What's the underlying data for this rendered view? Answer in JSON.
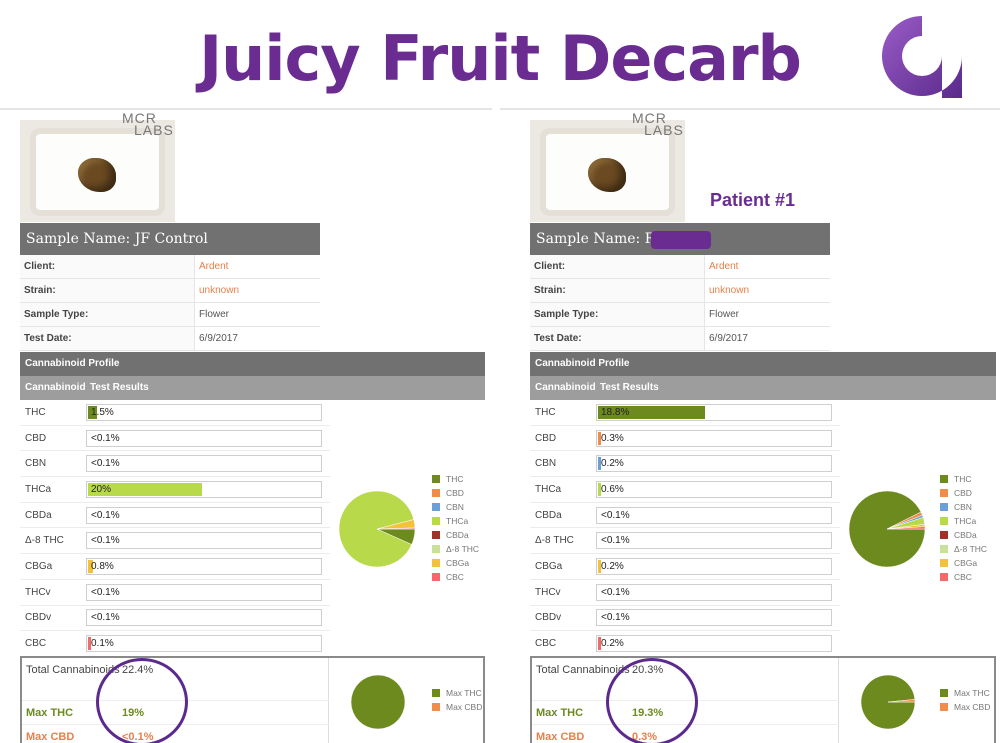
{
  "title": "Juicy Fruit Decarb",
  "legend_labels": [
    "THC",
    "CBD",
    "CBN",
    "THCa",
    "CBDa",
    "Δ-8 THC",
    "CBGa",
    "CBC"
  ],
  "legend_colors": [
    "#6c8a1e",
    "#f28c4a",
    "#6a9fd8",
    "#b8d94a",
    "#a3312a",
    "#c8e09a",
    "#f2c33a",
    "#f26a6a"
  ],
  "total_legend": [
    "Max THC",
    "Max CBD"
  ],
  "panels": [
    {
      "logo": "MCR LABS",
      "patient_label": "",
      "sample_name": "Sample Name: JF Control",
      "info": [
        {
          "k": "Client:",
          "v": "Ardent"
        },
        {
          "k": "Strain:",
          "v": "unknown"
        },
        {
          "k": "Sample Type:",
          "v": "Flower"
        },
        {
          "k": "Test Date:",
          "v": "6/9/2017"
        }
      ],
      "profile_header": "Cannabinoid Profile",
      "col_cannabinoid": "Cannabinoid",
      "col_results": "Test Results",
      "cannabinoids": [
        {
          "name": "THC",
          "value": "1.5%"
        },
        {
          "name": "CBD",
          "value": "<0.1%"
        },
        {
          "name": "CBN",
          "value": "<0.1%"
        },
        {
          "name": "THCa",
          "value": "20%"
        },
        {
          "name": "CBDa",
          "value": "<0.1%"
        },
        {
          "name": "Δ-8 THC",
          "value": "<0.1%"
        },
        {
          "name": "CBGa",
          "value": "0.8%"
        },
        {
          "name": "THCv",
          "value": "<0.1%"
        },
        {
          "name": "CBDv",
          "value": "<0.1%"
        },
        {
          "name": "CBC",
          "value": "0.1%"
        }
      ],
      "total_label": "Total Cannabinoids",
      "total_value": "22.4%",
      "max_thc_label": "Max THC",
      "max_thc_value": "19%",
      "max_cbd_label": "Max CBD",
      "max_cbd_value": "<0.1%"
    },
    {
      "logo": "MCR LABS",
      "patient_label": "Patient #1",
      "sample_name": "Sample Name: Ra h",
      "info": [
        {
          "k": "Client:",
          "v": "Ardent"
        },
        {
          "k": "Strain:",
          "v": "unknown"
        },
        {
          "k": "Sample Type:",
          "v": "Flower"
        },
        {
          "k": "Test Date:",
          "v": "6/9/2017"
        }
      ],
      "profile_header": "Cannabinoid Profile",
      "col_cannabinoid": "Cannabinoid",
      "col_results": "Test Results",
      "cannabinoids": [
        {
          "name": "THC",
          "value": "18.8%"
        },
        {
          "name": "CBD",
          "value": "0.3%"
        },
        {
          "name": "CBN",
          "value": "0.2%"
        },
        {
          "name": "THCa",
          "value": "0.6%"
        },
        {
          "name": "CBDa",
          "value": "<0.1%"
        },
        {
          "name": "Δ-8 THC",
          "value": "<0.1%"
        },
        {
          "name": "CBGa",
          "value": "0.2%"
        },
        {
          "name": "THCv",
          "value": "<0.1%"
        },
        {
          "name": "CBDv",
          "value": "<0.1%"
        },
        {
          "name": "CBC",
          "value": "0.2%"
        }
      ],
      "total_label": "Total Cannabinoids",
      "total_value": "20.3%",
      "max_thc_label": "Max THC",
      "max_thc_value": "19.3%",
      "max_cbd_label": "Max CBD",
      "max_cbd_value": "0.3%"
    }
  ],
  "chart_data": [
    {
      "type": "bar",
      "categories": [
        "THC",
        "CBD",
        "CBN",
        "THCa",
        "CBDa",
        "Δ-8 THC",
        "CBGa",
        "THCv",
        "CBDv",
        "CBC"
      ],
      "values": [
        1.5,
        0,
        0,
        20,
        0,
        0,
        0.8,
        0,
        0,
        0.1
      ]
    },
    {
      "type": "pie",
      "categories": [
        "THC",
        "CBD",
        "CBN",
        "THCa",
        "CBDa",
        "Δ-8 THC",
        "CBGa",
        "CBC"
      ],
      "values": [
        1.5,
        0,
        0,
        20,
        0,
        0,
        0.8,
        0.1
      ]
    },
    {
      "type": "pie",
      "categories": [
        "Max THC",
        "Max CBD"
      ],
      "values": [
        19,
        0
      ]
    },
    {
      "type": "bar",
      "categories": [
        "THC",
        "CBD",
        "CBN",
        "THCa",
        "CBDa",
        "Δ-8 THC",
        "CBGa",
        "THCv",
        "CBDv",
        "CBC"
      ],
      "values": [
        18.8,
        0.3,
        0.2,
        0.6,
        0,
        0,
        0.2,
        0,
        0,
        0.2
      ]
    },
    {
      "type": "pie",
      "categories": [
        "THC",
        "CBD",
        "CBN",
        "THCa",
        "CBDa",
        "Δ-8 THC",
        "CBGa",
        "CBC"
      ],
      "values": [
        18.8,
        0.3,
        0.2,
        0.6,
        0,
        0,
        0.2,
        0.2
      ]
    },
    {
      "type": "pie",
      "categories": [
        "Max THC",
        "Max CBD"
      ],
      "values": [
        19.3,
        0.3
      ]
    }
  ]
}
